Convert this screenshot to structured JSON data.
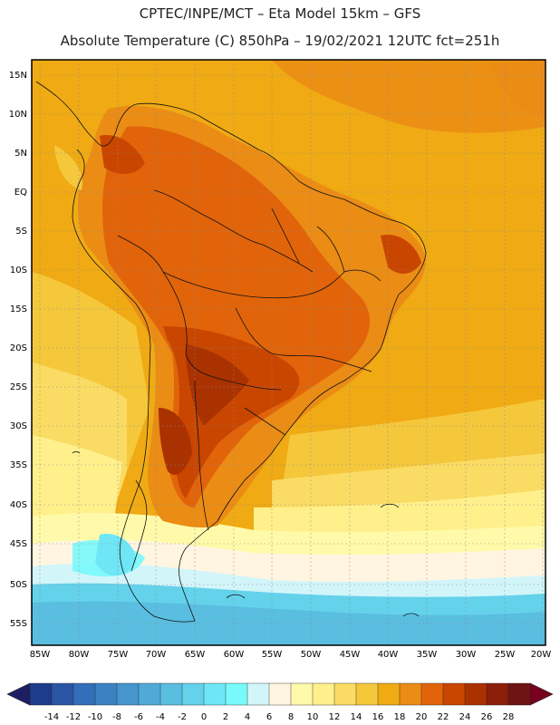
{
  "header": {
    "line1": "CPTEC/INPE/MCT –  Eta Model 15km – GFS",
    "line2": "Absolute Temperature (C) 850hPa – 19/02/2021 12UTC fct=251h"
  },
  "map": {
    "lat_labels": [
      "15N",
      "10N",
      "5N",
      "EQ",
      "5S",
      "10S",
      "15S",
      "20S",
      "25S",
      "30S",
      "35S",
      "40S",
      "45S",
      "50S",
      "55S"
    ],
    "lon_labels": [
      "85W",
      "80W",
      "75W",
      "70W",
      "65W",
      "60W",
      "55W",
      "50W",
      "45W",
      "40W",
      "35W",
      "30W",
      "25W",
      "20W"
    ],
    "field": "Absolute Temperature (C) 850hPa"
  },
  "colorbar": {
    "labels": [
      "-14",
      "-12",
      "-10",
      "-8",
      "-6",
      "-4",
      "-2",
      "0",
      "2",
      "4",
      "6",
      "8",
      "10",
      "12",
      "14",
      "16",
      "18",
      "20",
      "22",
      "24",
      "26",
      "28"
    ],
    "colors": [
      "#1e3c8c",
      "#2a55a5",
      "#326eb9",
      "#3c82c3",
      "#4696cd",
      "#50aad7",
      "#5abee1",
      "#64d2eb",
      "#6ee6f5",
      "#78fafa",
      "#d2f5fa",
      "#fff5e1",
      "#fffaaa",
      "#fff08c",
      "#fadc64",
      "#f5c83c",
      "#f0aa14",
      "#eb8c14",
      "#e1640a",
      "#c84600",
      "#aa3200",
      "#8c1e0a",
      "#6e1414"
    ],
    "low_end_color": "#1e1e64",
    "high_end_color": "#78001e"
  }
}
